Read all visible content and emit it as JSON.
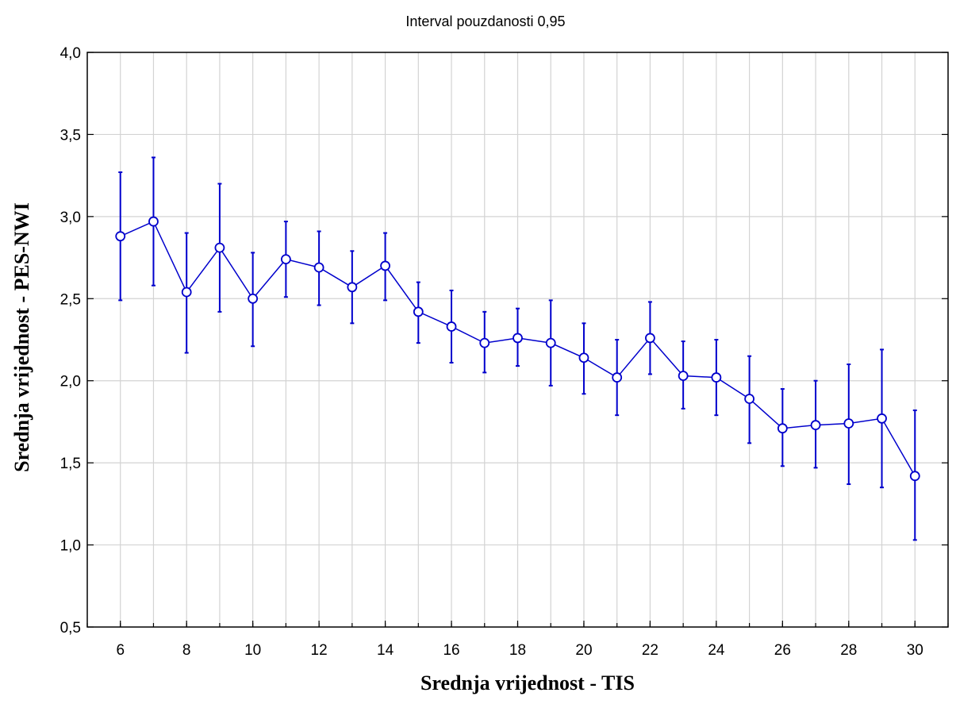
{
  "chart_data": {
    "type": "line",
    "title": "Interval pouzdanosti 0,95",
    "xlabel": "Srednja vrijednost - TIS",
    "ylabel": "Srednja vrijednost - PES-NWI",
    "xlim": [
      5,
      31
    ],
    "ylim": [
      0.5,
      4.0
    ],
    "x_ticks": [
      6,
      8,
      10,
      12,
      14,
      16,
      18,
      20,
      22,
      24,
      26,
      28,
      30
    ],
    "x_tick_labels": [
      "6",
      "8",
      "10",
      "12",
      "14",
      "16",
      "18",
      "20",
      "22",
      "24",
      "26",
      "28",
      "30"
    ],
    "y_ticks": [
      0.5,
      1.0,
      1.5,
      2.0,
      2.5,
      3.0,
      3.5,
      4.0
    ],
    "y_tick_labels": [
      "0,5",
      "1,0",
      "1,5",
      "2,0",
      "2,5",
      "3,0",
      "3,5",
      "4,0"
    ],
    "grid": true,
    "series_color": "#0000cc",
    "series": [
      {
        "points": [
          {
            "x": 6,
            "y": 2.88,
            "lo": 2.49,
            "hi": 3.27
          },
          {
            "x": 7,
            "y": 2.97,
            "lo": 2.58,
            "hi": 3.36
          },
          {
            "x": 8,
            "y": 2.54,
            "lo": 2.17,
            "hi": 2.9
          },
          {
            "x": 9,
            "y": 2.81,
            "lo": 2.42,
            "hi": 3.2
          },
          {
            "x": 10,
            "y": 2.5,
            "lo": 2.21,
            "hi": 2.78
          },
          {
            "x": 11,
            "y": 2.74,
            "lo": 2.51,
            "hi": 2.97
          },
          {
            "x": 12,
            "y": 2.69,
            "lo": 2.46,
            "hi": 2.91
          },
          {
            "x": 13,
            "y": 2.57,
            "lo": 2.35,
            "hi": 2.79
          },
          {
            "x": 14,
            "y": 2.7,
            "lo": 2.49,
            "hi": 2.9
          },
          {
            "x": 15,
            "y": 2.42,
            "lo": 2.23,
            "hi": 2.6
          },
          {
            "x": 16,
            "y": 2.33,
            "lo": 2.11,
            "hi": 2.55
          },
          {
            "x": 17,
            "y": 2.23,
            "lo": 2.05,
            "hi": 2.42
          },
          {
            "x": 18,
            "y": 2.26,
            "lo": 2.09,
            "hi": 2.44
          },
          {
            "x": 19,
            "y": 2.23,
            "lo": 1.97,
            "hi": 2.49
          },
          {
            "x": 20,
            "y": 2.14,
            "lo": 1.92,
            "hi": 2.35
          },
          {
            "x": 21,
            "y": 2.02,
            "lo": 1.79,
            "hi": 2.25
          },
          {
            "x": 22,
            "y": 2.26,
            "lo": 2.04,
            "hi": 2.48
          },
          {
            "x": 23,
            "y": 2.03,
            "lo": 1.83,
            "hi": 2.24
          },
          {
            "x": 24,
            "y": 2.02,
            "lo": 1.79,
            "hi": 2.25
          },
          {
            "x": 25,
            "y": 1.89,
            "lo": 1.62,
            "hi": 2.15
          },
          {
            "x": 26,
            "y": 1.71,
            "lo": 1.48,
            "hi": 1.95
          },
          {
            "x": 27,
            "y": 1.73,
            "lo": 1.47,
            "hi": 2.0
          },
          {
            "x": 28,
            "y": 1.74,
            "lo": 1.37,
            "hi": 2.1
          },
          {
            "x": 29,
            "y": 1.77,
            "lo": 1.35,
            "hi": 2.19
          },
          {
            "x": 30,
            "y": 1.42,
            "lo": 1.03,
            "hi": 1.82
          }
        ]
      }
    ]
  }
}
